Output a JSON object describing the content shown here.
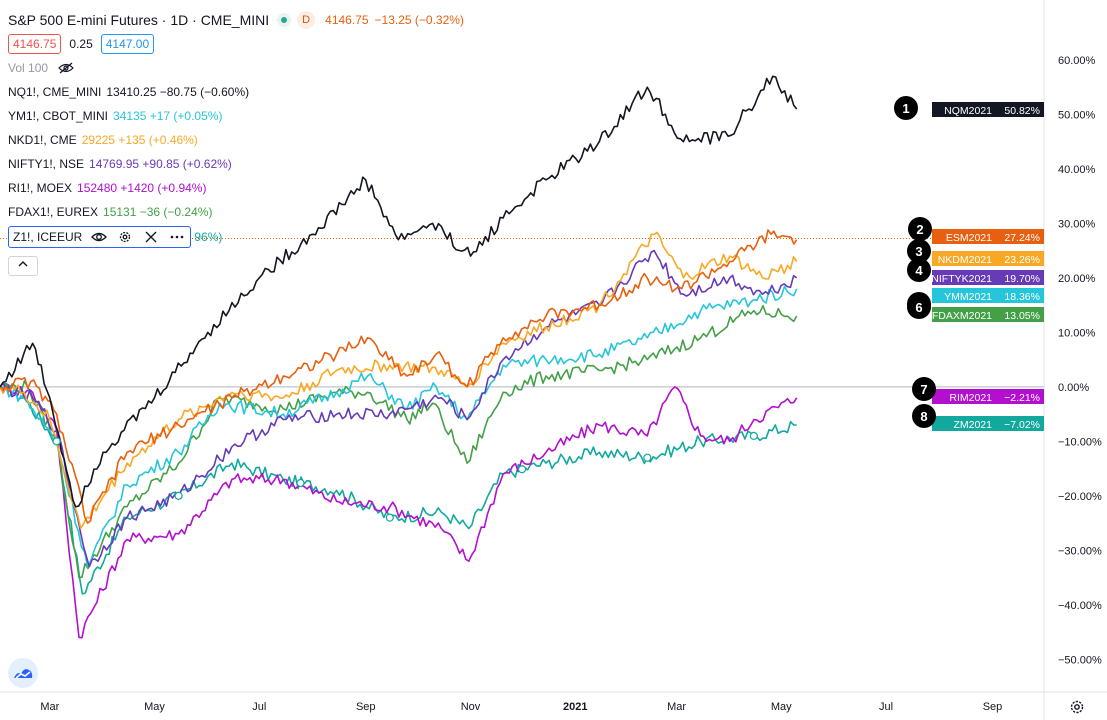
{
  "header": {
    "title": "S&P 500 E-mini Futures · 1D · CME_MINI",
    "d_badge": "D",
    "last_price": "4146.75",
    "change": "−13.25 (−0.32%)",
    "bid": "4146.75",
    "spread": "0.25",
    "ask": "4147.00"
  },
  "volume_label": "Vol 100",
  "legend_rows": [
    {
      "symbol": "NQ1!, CME_MINI",
      "value": "13410.25 −80.75 (−0.60%)",
      "color": "#131722"
    },
    {
      "symbol": "YM1!, CBOT_MINI",
      "value": "34135 +17 (+0.05%)",
      "color": "#26c6da"
    },
    {
      "symbol": "NKD1!, CME",
      "value": "29225 +135 (+0.46%)",
      "color": "#f9a825"
    },
    {
      "symbol": "NIFTY1!, NSE",
      "value": "14769.95 +90.85 (+0.62%)",
      "color": "#673ab7"
    },
    {
      "symbol": "RI1!, MOEX",
      "value": "152480 +1420 (+0.94%)",
      "color": "#b30fcf"
    },
    {
      "symbol": "FDAX1!, EUREX",
      "value": "15131 −36 (−0.24%)",
      "color": "#43a047"
    }
  ],
  "z1_row": {
    "symbol": "Z1!, ICEEUR",
    "value_tail": "96%)",
    "color": "#12a89e"
  },
  "icons": [
    "eye-icon",
    "gear-icon",
    "close-icon",
    "more-icon",
    "chevron-up-icon",
    "tradingview-logo",
    "settings-icon"
  ],
  "chart_data": {
    "type": "line",
    "y_axis": {
      "ticks": [
        "60.00%",
        "50.00%",
        "40.00%",
        "30.00%",
        "20.00%",
        "10.00%",
        "0.00%",
        "−10.00%",
        "−20.00%",
        "−30.00%",
        "−40.00%",
        "−50.00%"
      ],
      "ylim": [
        -56,
        71
      ],
      "unit": "%"
    },
    "x_axis": {
      "ticks": [
        "Mar",
        "May",
        "Jul",
        "Sep",
        "Nov",
        "2021",
        "Mar",
        "May",
        "Jul",
        "Sep"
      ],
      "range": [
        "2020-02-01",
        "2021-10-01"
      ]
    },
    "grid": false,
    "legend_position": "top-left",
    "series": [
      {
        "name": "NQM2021",
        "label": "50.82%",
        "color": "#131722",
        "badge": "1",
        "points": [
          [
            "2020-02-01",
            0
          ],
          [
            "2020-02-20",
            8
          ],
          [
            "2020-03-01",
            -2
          ],
          [
            "2020-03-16",
            -22
          ],
          [
            "2020-04-01",
            -12
          ],
          [
            "2020-05-01",
            -2
          ],
          [
            "2020-06-01",
            10
          ],
          [
            "2020-07-01",
            20
          ],
          [
            "2020-08-01",
            28
          ],
          [
            "2020-09-01",
            38
          ],
          [
            "2020-09-20",
            27
          ],
          [
            "2020-10-10",
            30
          ],
          [
            "2020-11-01",
            24
          ],
          [
            "2020-11-20",
            31
          ],
          [
            "2020-12-15",
            38
          ],
          [
            "2021-01-15",
            45
          ],
          [
            "2021-02-12",
            55
          ],
          [
            "2021-03-05",
            45
          ],
          [
            "2021-03-31",
            46
          ],
          [
            "2021-04-26",
            57
          ],
          [
            "2021-05-10",
            51
          ]
        ]
      },
      {
        "name": "ESM2021",
        "label": "27.24%",
        "color": "#e8600f",
        "badge": "2",
        "points": [
          [
            "2020-02-01",
            0
          ],
          [
            "2020-02-19",
            1
          ],
          [
            "2020-03-05",
            -5
          ],
          [
            "2020-03-23",
            -25
          ],
          [
            "2020-04-15",
            -12
          ],
          [
            "2020-05-15",
            -7
          ],
          [
            "2020-06-15",
            -2
          ],
          [
            "2020-07-15",
            2
          ],
          [
            "2020-08-15",
            6
          ],
          [
            "2020-09-02",
            9
          ],
          [
            "2020-09-25",
            2
          ],
          [
            "2020-10-12",
            6
          ],
          [
            "2020-10-30",
            0
          ],
          [
            "2020-11-20",
            9
          ],
          [
            "2020-12-15",
            13
          ],
          [
            "2021-01-15",
            15
          ],
          [
            "2021-02-12",
            20
          ],
          [
            "2021-03-04",
            18
          ],
          [
            "2021-04-01",
            23
          ],
          [
            "2021-04-25",
            28
          ],
          [
            "2021-05-10",
            27
          ]
        ]
      },
      {
        "name": "NKDM2021",
        "label": "23.26%",
        "color": "#f9a825",
        "badge": "3",
        "points": [
          [
            "2020-02-01",
            0
          ],
          [
            "2020-02-15",
            -1
          ],
          [
            "2020-03-01",
            -6
          ],
          [
            "2020-03-19",
            -26
          ],
          [
            "2020-04-15",
            -14
          ],
          [
            "2020-05-15",
            -6
          ],
          [
            "2020-06-15",
            -1
          ],
          [
            "2020-07-15",
            -2
          ],
          [
            "2020-08-15",
            3
          ],
          [
            "2020-09-15",
            4
          ],
          [
            "2020-10-15",
            3
          ],
          [
            "2020-10-30",
            0
          ],
          [
            "2020-11-20",
            8
          ],
          [
            "2020-12-15",
            11
          ],
          [
            "2021-01-15",
            15
          ],
          [
            "2021-02-16",
            28
          ],
          [
            "2021-03-05",
            20
          ],
          [
            "2021-04-01",
            24
          ],
          [
            "2021-04-20",
            20
          ],
          [
            "2021-05-10",
            23
          ]
        ]
      },
      {
        "name": "NIFTYK2021",
        "label": "19.70%",
        "color": "#673ab7",
        "badge": "4",
        "points": [
          [
            "2020-02-01",
            0
          ],
          [
            "2020-02-20",
            -2
          ],
          [
            "2020-03-05",
            -8
          ],
          [
            "2020-03-24",
            -33
          ],
          [
            "2020-04-15",
            -24
          ],
          [
            "2020-05-15",
            -20
          ],
          [
            "2020-06-15",
            -11
          ],
          [
            "2020-07-15",
            -6
          ],
          [
            "2020-08-15",
            -5
          ],
          [
            "2020-09-15",
            -5
          ],
          [
            "2020-10-15",
            -2
          ],
          [
            "2020-10-30",
            -6
          ],
          [
            "2020-11-20",
            5
          ],
          [
            "2020-12-15",
            11
          ],
          [
            "2021-01-15",
            15
          ],
          [
            "2021-02-16",
            25
          ],
          [
            "2021-03-05",
            17
          ],
          [
            "2021-04-01",
            20
          ],
          [
            "2021-04-20",
            17
          ],
          [
            "2021-05-10",
            20
          ]
        ]
      },
      {
        "name": "YMM2021",
        "label": "18.36%",
        "color": "#26c6da",
        "badge": "5",
        "points": [
          [
            "2020-02-01",
            0
          ],
          [
            "2020-02-15",
            -2
          ],
          [
            "2020-03-05",
            -10
          ],
          [
            "2020-03-23",
            -33
          ],
          [
            "2020-04-15",
            -18
          ],
          [
            "2020-05-15",
            -12
          ],
          [
            "2020-06-08",
            -3
          ],
          [
            "2020-07-15",
            -5
          ],
          [
            "2020-08-15",
            -1
          ],
          [
            "2020-09-02",
            2
          ],
          [
            "2020-09-25",
            -4
          ],
          [
            "2020-10-12",
            0
          ],
          [
            "2020-10-30",
            -6
          ],
          [
            "2020-11-20",
            4
          ],
          [
            "2020-12-15",
            5
          ],
          [
            "2021-01-15",
            6
          ],
          [
            "2021-02-12",
            9
          ],
          [
            "2021-03-15",
            14
          ],
          [
            "2021-04-15",
            16
          ],
          [
            "2021-05-10",
            18
          ]
        ]
      },
      {
        "name": "FDAXM2021",
        "label": "13.05%",
        "color": "#43a047",
        "badge": "6",
        "points": [
          [
            "2020-02-01",
            0
          ],
          [
            "2020-02-17",
            0
          ],
          [
            "2020-03-05",
            -10
          ],
          [
            "2020-03-18",
            -35
          ],
          [
            "2020-04-15",
            -22
          ],
          [
            "2020-05-15",
            -14
          ],
          [
            "2020-06-08",
            -2
          ],
          [
            "2020-07-15",
            -4
          ],
          [
            "2020-08-15",
            -1
          ],
          [
            "2020-09-02",
            -1
          ],
          [
            "2020-09-25",
            -6
          ],
          [
            "2020-10-10",
            -3
          ],
          [
            "2020-10-30",
            -14
          ],
          [
            "2020-11-20",
            -1
          ],
          [
            "2020-12-15",
            2
          ],
          [
            "2021-01-15",
            3
          ],
          [
            "2021-02-12",
            5
          ],
          [
            "2021-03-15",
            9
          ],
          [
            "2021-04-15",
            14
          ],
          [
            "2021-05-10",
            13
          ]
        ]
      },
      {
        "name": "RIM2021",
        "label": "−2.21%",
        "color": "#b30fcf",
        "badge": "7",
        "points": [
          [
            "2020-02-01",
            0
          ],
          [
            "2020-02-20",
            -1
          ],
          [
            "2020-03-05",
            -8
          ],
          [
            "2020-03-18",
            -46
          ],
          [
            "2020-04-15",
            -28
          ],
          [
            "2020-05-15",
            -27
          ],
          [
            "2020-06-15",
            -17
          ],
          [
            "2020-07-15",
            -17
          ],
          [
            "2020-08-15",
            -21
          ],
          [
            "2020-09-15",
            -22
          ],
          [
            "2020-10-15",
            -26
          ],
          [
            "2020-10-31",
            -32
          ],
          [
            "2020-11-20",
            -16
          ],
          [
            "2020-12-15",
            -12
          ],
          [
            "2021-01-15",
            -7
          ],
          [
            "2021-02-12",
            -9
          ],
          [
            "2021-02-28",
            0
          ],
          [
            "2021-03-15",
            -9
          ],
          [
            "2021-04-01",
            -10
          ],
          [
            "2021-04-15",
            -6
          ],
          [
            "2021-05-10",
            -2
          ]
        ]
      },
      {
        "name": "ZM2021",
        "label": "−7.02%",
        "color": "#12a89e",
        "badge": "8",
        "points": [
          [
            "2020-02-01",
            0
          ],
          [
            "2020-02-15",
            -2
          ],
          [
            "2020-03-05",
            -10
          ],
          [
            "2020-03-20",
            -38
          ],
          [
            "2020-04-15",
            -24
          ],
          [
            "2020-05-15",
            -20
          ],
          [
            "2020-06-15",
            -14
          ],
          [
            "2020-07-15",
            -17
          ],
          [
            "2020-08-15",
            -19
          ],
          [
            "2020-09-15",
            -24
          ],
          [
            "2020-10-15",
            -23
          ],
          [
            "2020-10-31",
            -26
          ],
          [
            "2020-11-20",
            -16
          ],
          [
            "2020-12-15",
            -14
          ],
          [
            "2021-01-15",
            -12
          ],
          [
            "2021-02-12",
            -13
          ],
          [
            "2021-03-15",
            -10
          ],
          [
            "2021-04-15",
            -9
          ],
          [
            "2021-05-10",
            -7
          ]
        ]
      }
    ],
    "annotations": [
      {
        "type": "horizontal-dotted-line",
        "value": 27.24,
        "color": "#e8600f"
      },
      {
        "type": "horizontal-baseline",
        "value": 0,
        "color": "#b2b5be"
      }
    ]
  }
}
